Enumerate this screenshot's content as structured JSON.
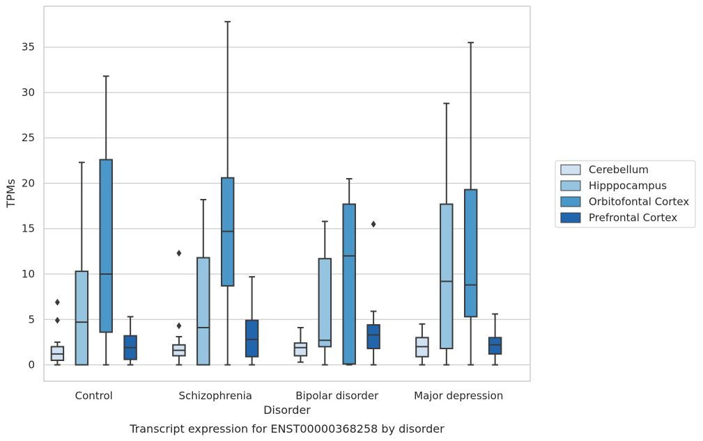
{
  "chart_data": {
    "type": "box",
    "caption": "Transcript expression for ENST00000368258 by disorder",
    "xlabel": "Disorder",
    "ylabel": "TPMs",
    "ylim": [
      -1.8,
      39.5
    ],
    "yticks": [
      0,
      5,
      10,
      15,
      20,
      25,
      30,
      35
    ],
    "grid": "horizontal",
    "legend_position": "right",
    "categories": [
      "Control",
      "Schizophrenia",
      "Bipolar disorder",
      "Major depression"
    ],
    "series": [
      {
        "name": "Cerebellum",
        "color": "#d0e1f2",
        "boxes": [
          {
            "whisker_low": 0,
            "q1": 0.5,
            "median": 1.2,
            "q3": 2.0,
            "whisker_high": 2.5,
            "outliers": [
              4.9,
              6.9
            ]
          },
          {
            "whisker_low": 0,
            "q1": 1.0,
            "median": 1.6,
            "q3": 2.2,
            "whisker_high": 3.1,
            "outliers": [
              4.3,
              12.3
            ]
          },
          {
            "whisker_low": 0.3,
            "q1": 1.0,
            "median": 1.9,
            "q3": 2.4,
            "whisker_high": 4.1,
            "outliers": []
          },
          {
            "whisker_low": 0,
            "q1": 0.9,
            "median": 2.0,
            "q3": 3.0,
            "whisker_high": 4.5,
            "outliers": []
          }
        ]
      },
      {
        "name": "Hipppocampus",
        "color": "#94c4df",
        "boxes": [
          {
            "whisker_low": 0,
            "q1": 0,
            "median": 4.7,
            "q3": 10.3,
            "whisker_high": 22.3,
            "outliers": []
          },
          {
            "whisker_low": 0,
            "q1": 0,
            "median": 4.1,
            "q3": 11.8,
            "whisker_high": 18.2,
            "outliers": []
          },
          {
            "whisker_low": 0,
            "q1": 2.0,
            "median": 2.7,
            "q3": 11.7,
            "whisker_high": 15.8,
            "outliers": []
          },
          {
            "whisker_low": 0,
            "q1": 1.8,
            "median": 9.2,
            "q3": 17.7,
            "whisker_high": 28.8,
            "outliers": []
          }
        ]
      },
      {
        "name": "Orbitofontal Cortex",
        "color": "#4a98c9",
        "boxes": [
          {
            "whisker_low": 0,
            "q1": 3.6,
            "median": 10.0,
            "q3": 22.6,
            "whisker_high": 31.8,
            "outliers": []
          },
          {
            "whisker_low": 0,
            "q1": 8.7,
            "median": 14.7,
            "q3": 20.6,
            "whisker_high": 37.8,
            "outliers": []
          },
          {
            "whisker_low": 0,
            "q1": 0.1,
            "median": 12.0,
            "q3": 17.7,
            "whisker_high": 20.5,
            "outliers": []
          },
          {
            "whisker_low": 0,
            "q1": 5.3,
            "median": 8.8,
            "q3": 19.3,
            "whisker_high": 35.5,
            "outliers": []
          }
        ]
      },
      {
        "name": "Prefrontal Cortex",
        "color": "#2166ac",
        "boxes": [
          {
            "whisker_low": 0,
            "q1": 0.6,
            "median": 1.9,
            "q3": 3.2,
            "whisker_high": 5.3,
            "outliers": []
          },
          {
            "whisker_low": 0,
            "q1": 0.9,
            "median": 2.8,
            "q3": 4.9,
            "whisker_high": 9.7,
            "outliers": []
          },
          {
            "whisker_low": 0,
            "q1": 1.8,
            "median": 3.3,
            "q3": 4.4,
            "whisker_high": 5.9,
            "outliers": [
              15.5
            ]
          },
          {
            "whisker_low": 0,
            "q1": 1.2,
            "median": 2.2,
            "q3": 3.0,
            "whisker_high": 5.6,
            "outliers": []
          }
        ]
      }
    ]
  }
}
